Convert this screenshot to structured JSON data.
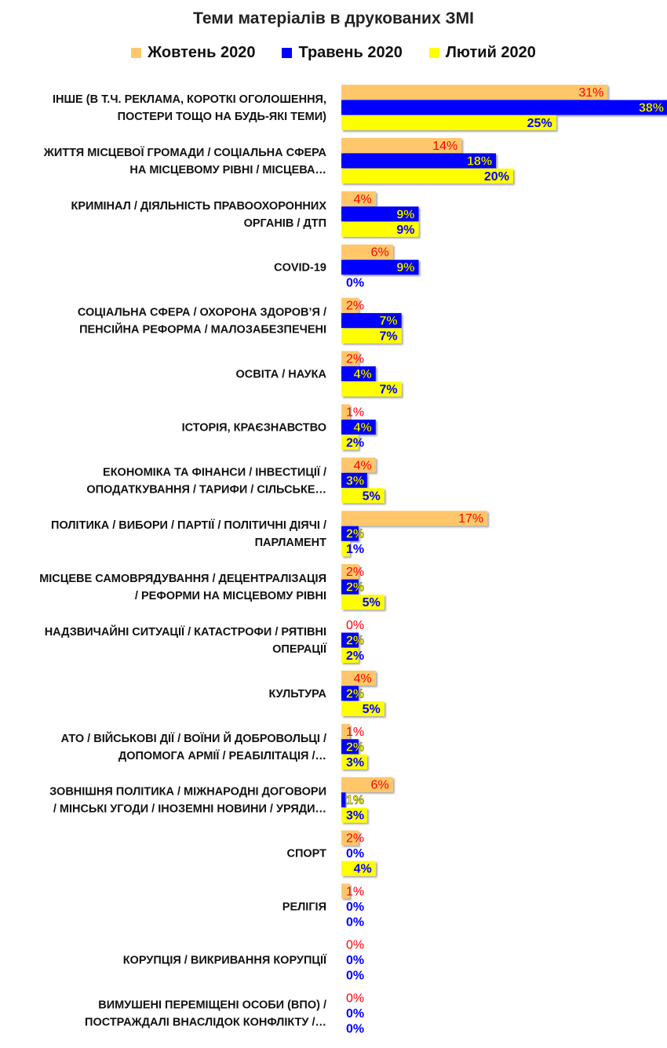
{
  "title": "Теми матеріалів в друкованих ЗМІ",
  "colors": {
    "series": [
      "#FFC76B",
      "#0000FF",
      "#FFFF00"
    ],
    "labels": [
      "#FF0000",
      "#FFFF00",
      "#0000FF"
    ],
    "zero_labels": [
      "#FF0000",
      "#0000FF",
      "#0000FF"
    ]
  },
  "chart_data": {
    "type": "bar",
    "orientation": "horizontal",
    "title": "Теми матеріалів в друкованих ЗМІ",
    "legend_position": "top",
    "xlim": [
      0,
      40
    ],
    "grid": false,
    "value_suffix": "%",
    "categories": [
      [
        "ІНШЕ (В Т.Ч. РЕКЛАМА, КОРОТКІ ОГОЛОШЕННЯ,",
        "ПОСТЕРИ ТОЩО НА БУДЬ-ЯКІ ТЕМИ)"
      ],
      [
        "ЖИТТЯ МІСЦЕВОЇ ГРОМАДИ / СОЦІАЛЬНА СФЕРА",
        "НА МІСЦЕВОМУ РІВНІ / МІСЦЕВА…"
      ],
      [
        "КРИМІНАЛ / ДІЯЛЬНІСТЬ ПРАВООХОРОННИХ",
        "ОРГАНІВ / ДТП"
      ],
      [
        "COVID-19"
      ],
      [
        "СОЦІАЛЬНА СФЕРА / ОХОРОНА ЗДОРОВ’Я /",
        "ПЕНСІЙНА РЕФОРМА / МАЛОЗАБЕЗПЕЧЕНІ"
      ],
      [
        "ОСВІТА / НАУКА"
      ],
      [
        "ІСТОРІЯ, КРАЄЗНАВСТВО"
      ],
      [
        "ЕКОНОМІКА ТА ФІНАНСИ / ІНВЕСТИЦІЇ /",
        "ОПОДАТКУВАННЯ / ТАРИФИ / СІЛЬСЬКЕ…"
      ],
      [
        "ПОЛІТИКА / ВИБОРИ / ПАРТІЇ / ПОЛІТИЧНІ ДІЯЧІ /",
        "ПАРЛАМЕНТ"
      ],
      [
        "МІСЦЕВЕ САМОВРЯДУВАННЯ / ДЕЦЕНТРАЛІЗАЦІЯ",
        "/ РЕФОРМИ НА МІСЦЕВОМУ РІВНІ"
      ],
      [
        "НАДЗВИЧАЙНІ СИТУАЦІЇ / КАТАСТРОФИ / РЯТІВНІ",
        "ОПЕРАЦІЇ"
      ],
      [
        "КУЛЬТУРА"
      ],
      [
        "АТО / ВІЙСЬКОВІ ДІЇ / ВОЇНИ Й ДОБРОВОЛЬЦІ /",
        "ДОПОМОГА АРМІЇ / РЕАБІЛІТАЦІЯ /…"
      ],
      [
        "ЗОВНІШНЯ ПОЛІТИКА / МІЖНАРОДНІ ДОГОВОРИ",
        "/ МІНСЬКІ УГОДИ / ІНОЗЕМНІ НОВИНИ / УРЯДИ…"
      ],
      [
        "СПОРТ"
      ],
      [
        "РЕЛІГІЯ"
      ],
      [
        "КОРУПЦІЯ / ВИКРИВАННЯ КОРУПЦІЇ"
      ],
      [
        "ВИМУШЕНІ ПЕРЕМІЩЕНІ ОСОБИ (ВПО) /",
        "ПОСТРАЖДАЛІ  ВНАСЛІДОК КОНФЛІКТУ /…"
      ]
    ],
    "series": [
      {
        "name": "Жовтень 2020",
        "values": [
          31,
          14,
          4,
          6,
          2,
          2,
          1,
          4,
          17,
          2,
          0,
          4,
          1,
          6,
          2,
          1,
          0,
          0
        ]
      },
      {
        "name": "Травень 2020",
        "values": [
          38,
          18,
          9,
          9,
          7,
          4,
          4,
          3,
          2,
          2,
          2,
          2,
          2,
          0.5,
          0,
          0,
          0,
          0
        ]
      },
      {
        "name": "Лютий 2020",
        "values": [
          25,
          20,
          9,
          null,
          7,
          7,
          2,
          5,
          1,
          5,
          2,
          5,
          3,
          3,
          4,
          0,
          0,
          0
        ]
      }
    ],
    "bar_labels": [
      [
        "31%",
        "38%",
        "25%"
      ],
      [
        "14%",
        "18%",
        "20%"
      ],
      [
        "4%",
        "9%",
        "9%"
      ],
      [
        "6%",
        "9%",
        "0%"
      ],
      [
        "2%",
        "7%",
        "7%"
      ],
      [
        "2%",
        "4%",
        "7%"
      ],
      [
        "1%",
        "4%",
        "2%"
      ],
      [
        "4%",
        "3%",
        "5%"
      ],
      [
        "17%",
        "2%",
        "1%"
      ],
      [
        "2%",
        "2%",
        "5%"
      ],
      [
        "0%",
        "2%",
        "2%"
      ],
      [
        "4%",
        "2%",
        "5%"
      ],
      [
        "1%",
        "2%",
        "3%"
      ],
      [
        "6%",
        "1%",
        "3%"
      ],
      [
        "2%",
        "0%",
        "4%"
      ],
      [
        "1%",
        "0%",
        "0%"
      ],
      [
        "0%",
        "0%",
        "0%"
      ],
      [
        "0%",
        "0%",
        "0%"
      ]
    ]
  }
}
